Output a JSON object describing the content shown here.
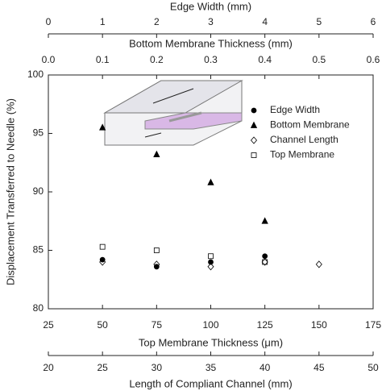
{
  "chart_data": {
    "type": "scatter",
    "ylabel": "Displacement Transferred to Needle (%)",
    "ylim": [
      80,
      100
    ],
    "yticks": [
      80,
      85,
      90,
      95,
      100
    ],
    "x_axes": [
      {
        "label": "Edge Width (mm)",
        "xlim": [
          0,
          6
        ],
        "xticks": [
          0,
          1,
          2,
          3,
          4,
          5,
          6
        ]
      },
      {
        "label": "Bottom Membrane Thickness (mm)",
        "xlim": [
          0,
          0.6
        ],
        "xticks": [
          {
            "value": 0,
            "label": "0.0"
          },
          0.1,
          0.2,
          0.3,
          0.4,
          0.5,
          0.6
        ]
      },
      {
        "label": "Top Membrane Thickness (μm)",
        "xlim": [
          25,
          175
        ],
        "xticks": [
          25,
          50,
          75,
          100,
          125,
          150,
          175
        ]
      },
      {
        "label": "Length of Compliant Channel (mm)",
        "xlim": [
          20,
          50
        ],
        "xticks": [
          20,
          25,
          30,
          35,
          40,
          45,
          50
        ]
      }
    ],
    "legend": "upper right",
    "series": [
      {
        "name": "Edge Width",
        "marker": "circle",
        "filled": true,
        "color": "#000000",
        "x_axis": 0,
        "x": [
          1,
          2,
          3,
          4
        ],
        "values": [
          84.2,
          83.6,
          84.0,
          84.5
        ]
      },
      {
        "name": "Bottom Membrane",
        "marker": "triangle",
        "filled": true,
        "color": "#000000",
        "x_axis": 1,
        "x": [
          0.1,
          0.2,
          0.3,
          0.4
        ],
        "values": [
          95.5,
          93.2,
          90.8,
          87.5
        ]
      },
      {
        "name": "Channel Length",
        "marker": "diamond",
        "filled": false,
        "color": "#000000",
        "x_axis": 3,
        "x": [
          25,
          30,
          35,
          40,
          45
        ],
        "values": [
          84.0,
          83.8,
          83.6,
          84.0,
          83.8
        ]
      },
      {
        "name": "Top Membrane",
        "marker": "square",
        "filled": false,
        "color": "#000000",
        "x_axis": 2,
        "x": [
          50,
          75,
          100,
          125
        ],
        "values": [
          85.3,
          85.0,
          84.5,
          84.0
        ]
      }
    ]
  }
}
